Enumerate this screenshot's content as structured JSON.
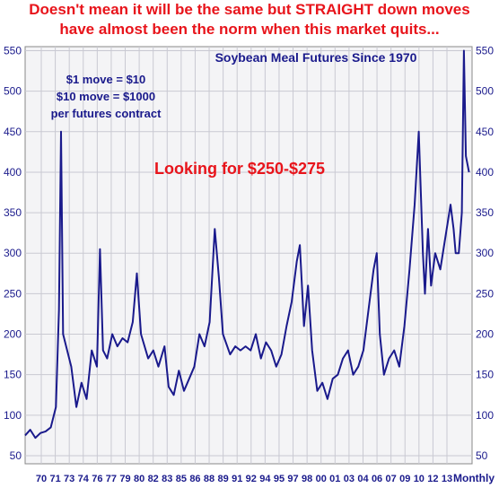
{
  "headline": {
    "line1": "Doesn't mean it will be the same but STRAIGHT down moves",
    "line2": "have almost been the norm when this market quits..."
  },
  "chart_data": {
    "type": "line",
    "title": "Soybean Meal Futures Since 1970",
    "notes": [
      "$1 move = $10",
      "$10 move = $1000",
      "per futures contract"
    ],
    "annotation": "Looking for $250-$275",
    "frequency_label": "Monthly",
    "x_tick_labels": [
      "70",
      "71",
      "73",
      "74",
      "76",
      "77",
      "79",
      "80",
      "82",
      "83",
      "85",
      "86",
      "88",
      "89",
      "91",
      "92",
      "94",
      "95",
      "97",
      "98",
      "00",
      "01",
      "03",
      "04",
      "06",
      "07",
      "09",
      "10",
      "12",
      "13"
    ],
    "y_ticks": [
      50,
      100,
      150,
      200,
      250,
      300,
      350,
      400,
      450,
      500,
      550
    ],
    "ylim": [
      40,
      555
    ],
    "xlim": [
      1970,
      2013.6
    ],
    "grid": true,
    "line_color": "#1a1a8c",
    "x": [
      1970.0,
      1970.5,
      1971.0,
      1971.5,
      1972.0,
      1972.5,
      1973.0,
      1973.3,
      1973.5,
      1973.7,
      1974.0,
      1974.5,
      1975.0,
      1975.5,
      1976.0,
      1976.5,
      1977.0,
      1977.3,
      1977.6,
      1978.0,
      1978.5,
      1979.0,
      1979.5,
      1980.0,
      1980.5,
      1980.9,
      1981.3,
      1982.0,
      1982.5,
      1983.0,
      1983.6,
      1984.0,
      1984.5,
      1985.0,
      1985.5,
      1986.0,
      1986.5,
      1987.0,
      1987.5,
      1988.0,
      1988.5,
      1988.9,
      1989.3,
      1990.0,
      1990.5,
      1991.0,
      1991.5,
      1992.0,
      1992.5,
      1993.0,
      1993.5,
      1994.0,
      1994.5,
      1995.0,
      1995.5,
      1996.0,
      1996.5,
      1996.8,
      1997.2,
      1997.6,
      1998.0,
      1998.5,
      1999.0,
      1999.5,
      2000.0,
      2000.5,
      2001.0,
      2001.5,
      2002.0,
      2002.5,
      2003.0,
      2003.5,
      2004.0,
      2004.3,
      2004.6,
      2005.0,
      2005.5,
      2006.0,
      2006.5,
      2007.0,
      2007.5,
      2008.0,
      2008.4,
      2008.8,
      2009.0,
      2009.3,
      2009.6,
      2010.0,
      2010.5,
      2011.0,
      2011.5,
      2011.8,
      2012.0,
      2012.3,
      2012.6,
      2012.8,
      2013.0,
      2013.3
    ],
    "y": [
      75,
      82,
      72,
      78,
      80,
      85,
      110,
      230,
      450,
      200,
      185,
      160,
      110,
      140,
      120,
      180,
      160,
      305,
      180,
      170,
      200,
      185,
      195,
      190,
      215,
      275,
      200,
      170,
      180,
      160,
      185,
      135,
      125,
      155,
      130,
      145,
      160,
      200,
      185,
      215,
      330,
      270,
      200,
      175,
      185,
      180,
      185,
      180,
      200,
      170,
      190,
      180,
      160,
      175,
      210,
      240,
      290,
      310,
      210,
      260,
      180,
      130,
      140,
      120,
      145,
      150,
      170,
      180,
      150,
      160,
      180,
      230,
      280,
      300,
      200,
      150,
      170,
      180,
      160,
      210,
      280,
      360,
      450,
      300,
      250,
      330,
      260,
      300,
      280,
      320,
      360,
      330,
      300,
      300,
      350,
      550,
      420,
      400
    ]
  }
}
